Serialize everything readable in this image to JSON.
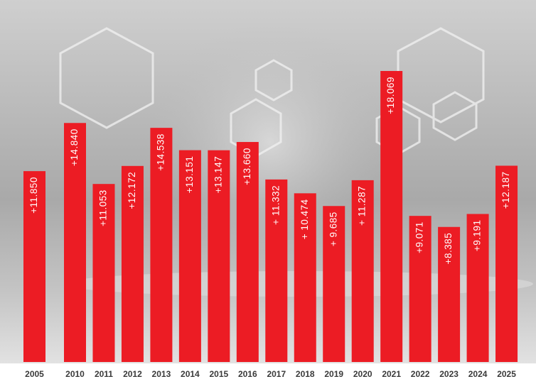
{
  "chart_data": {
    "type": "bar",
    "categories": [
      "2005",
      "2010",
      "2011",
      "2012",
      "2013",
      "2014",
      "2015",
      "2016",
      "2017",
      "2018",
      "2019",
      "2020",
      "2021",
      "2022",
      "2023",
      "2024",
      "2025"
    ],
    "values": [
      11850,
      14840,
      11053,
      12172,
      14538,
      13151,
      13147,
      13660,
      11332,
      10474,
      9685,
      11287,
      18069,
      9071,
      8385,
      9191,
      12187
    ],
    "value_labels": [
      "+11.850",
      "+14.840",
      "+11.053",
      "+12.172",
      "+14.538",
      "+13.151",
      "+13.147",
      "+13.660",
      "+ 11.332",
      "+ 10.474",
      "+ 9.685",
      "+ 11.287",
      "+18.069",
      "+9.071",
      "+8.385",
      "+9.191",
      "+12.187"
    ],
    "color": "#ec1c24"
  }
}
